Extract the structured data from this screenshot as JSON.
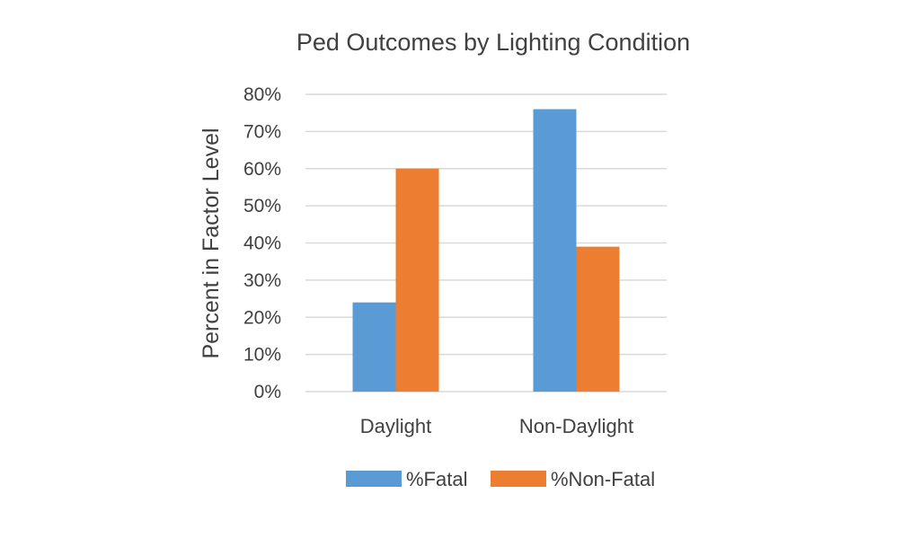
{
  "chart_data": {
    "type": "bar",
    "title": "Ped Outcomes by Lighting Condition",
    "xlabel": "",
    "ylabel": "Percent in Factor Level",
    "categories": [
      "Daylight",
      "Non-Daylight"
    ],
    "series": [
      {
        "name": "%Fatal",
        "values": [
          24,
          76
        ],
        "color": "#5b9bd5"
      },
      {
        "name": "%Non-Fatal",
        "values": [
          60,
          39
        ],
        "color": "#ed7d31"
      }
    ],
    "ylim": [
      0,
      80
    ],
    "yticks": [
      0,
      10,
      20,
      30,
      40,
      50,
      60,
      70,
      80
    ],
    "ytick_labels": [
      "0%",
      "10%",
      "20%",
      "30%",
      "40%",
      "50%",
      "60%",
      "70%",
      "80%"
    ],
    "grid": true,
    "legend_position": "bottom"
  }
}
